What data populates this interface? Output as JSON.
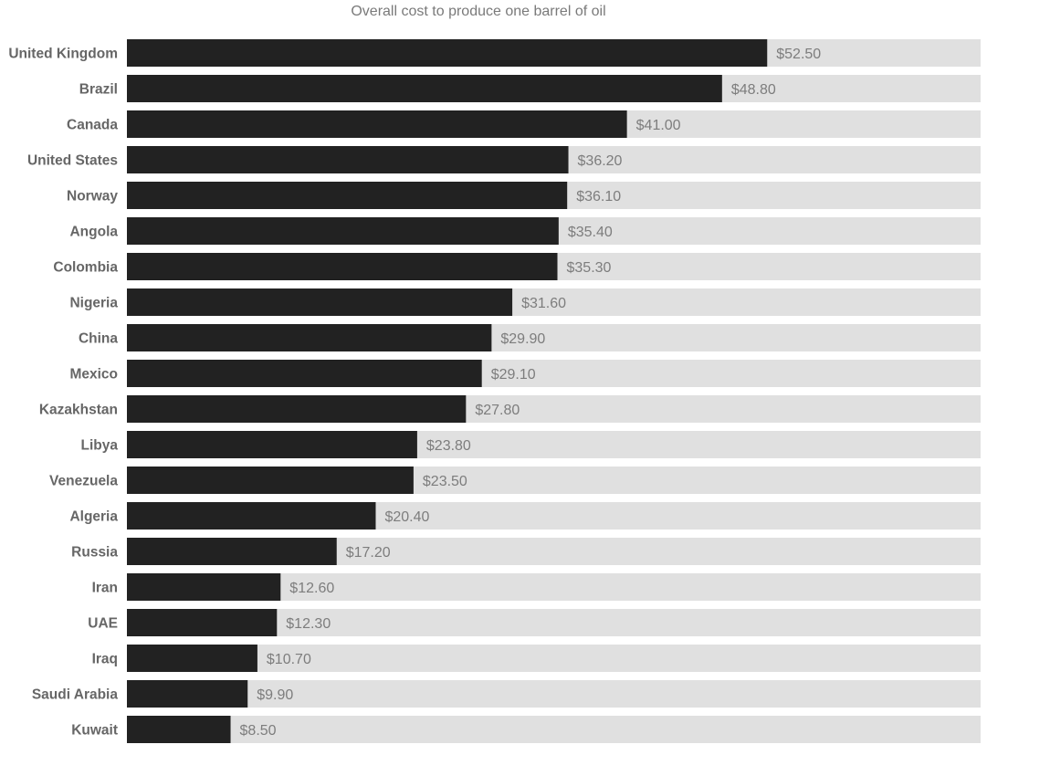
{
  "chart_data": {
    "type": "bar",
    "orientation": "horizontal",
    "title": "Overall cost to produce one barrel of oil",
    "xlabel": "",
    "ylabel": "",
    "categories": [
      "United Kingdom",
      "Brazil",
      "Canada",
      "United States",
      "Norway",
      "Angola",
      "Colombia",
      "Nigeria",
      "China",
      "Mexico",
      "Kazakhstan",
      "Libya",
      "Venezuela",
      "Algeria",
      "Russia",
      "Iran",
      "UAE",
      "Iraq",
      "Saudi Arabia",
      "Kuwait"
    ],
    "values": [
      52.5,
      48.8,
      41.0,
      36.2,
      36.1,
      35.4,
      35.3,
      31.6,
      29.9,
      29.1,
      27.8,
      23.8,
      23.5,
      20.4,
      17.2,
      12.6,
      12.3,
      10.7,
      9.9,
      8.5
    ],
    "value_labels": [
      "$52.50",
      "$48.80",
      "$41.00",
      "$36.20",
      "$36.10",
      "$35.40",
      "$35.30",
      "$31.60",
      "$29.90",
      "$29.10",
      "$27.80",
      "$23.80",
      "$23.50",
      "$20.40",
      "$17.20",
      "$12.60",
      "$12.30",
      "$10.70",
      "$9.90",
      "$8.50"
    ],
    "xlim": [
      0,
      70
    ],
    "grid": false,
    "legend": "none"
  },
  "colors": {
    "bar": "#222222",
    "track": "#e0e0e0",
    "category_text": "#666666",
    "value_text": "#7d7d7d",
    "title_text": "#7a7a7a"
  }
}
